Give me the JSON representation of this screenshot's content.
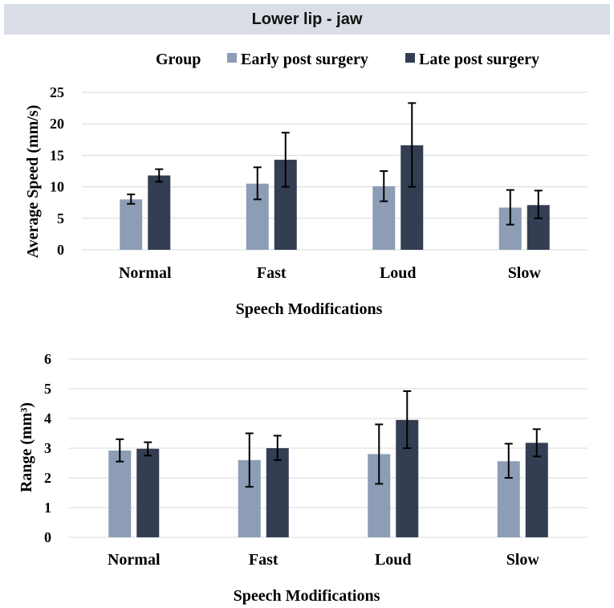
{
  "header": {
    "title": "Lower lip - jaw"
  },
  "legend": {
    "title": "Group",
    "entries": [
      "Early post surgery",
      "Late post surgery"
    ]
  },
  "colors": {
    "early": "#8c9db5",
    "late": "#333e52",
    "grid": "#d9d9d9",
    "error": "#000000"
  },
  "chart_data": [
    {
      "type": "bar",
      "title": "",
      "xlabel": "Speech Modifications",
      "ylabel": "Average Speed (mm/s)",
      "ylim": [
        0,
        25
      ],
      "yticks": [
        0,
        5,
        10,
        15,
        20,
        25
      ],
      "categories": [
        "Normal",
        "Fast",
        "Loud",
        "Slow"
      ],
      "series": [
        {
          "name": "Early post surgery",
          "values": [
            8.0,
            10.5,
            10.1,
            6.7
          ],
          "err_low": [
            7.3,
            8.0,
            7.7,
            4.0
          ],
          "err_high": [
            8.8,
            13.1,
            12.5,
            9.5
          ]
        },
        {
          "name": "Late post surgery",
          "values": [
            11.8,
            14.3,
            16.6,
            7.1
          ],
          "err_low": [
            10.8,
            10.0,
            10.0,
            5.0
          ],
          "err_high": [
            12.8,
            18.6,
            23.3,
            9.4
          ]
        }
      ]
    },
    {
      "type": "bar",
      "title": "",
      "xlabel": "Speech Modifications",
      "ylabel": "Range (mm³)",
      "ylim": [
        0,
        6
      ],
      "yticks": [
        0,
        1,
        2,
        3,
        4,
        5,
        6
      ],
      "categories": [
        "Normal",
        "Fast",
        "Loud",
        "Slow"
      ],
      "series": [
        {
          "name": "Early post surgery",
          "values": [
            2.92,
            2.6,
            2.8,
            2.56
          ],
          "err_low": [
            2.55,
            1.7,
            1.8,
            2.0
          ],
          "err_high": [
            3.3,
            3.5,
            3.8,
            3.15
          ]
        },
        {
          "name": "Late post surgery",
          "values": [
            2.98,
            3.0,
            3.95,
            3.18
          ],
          "err_low": [
            2.75,
            2.6,
            3.0,
            2.72
          ],
          "err_high": [
            3.2,
            3.42,
            4.92,
            3.64
          ]
        }
      ]
    }
  ]
}
